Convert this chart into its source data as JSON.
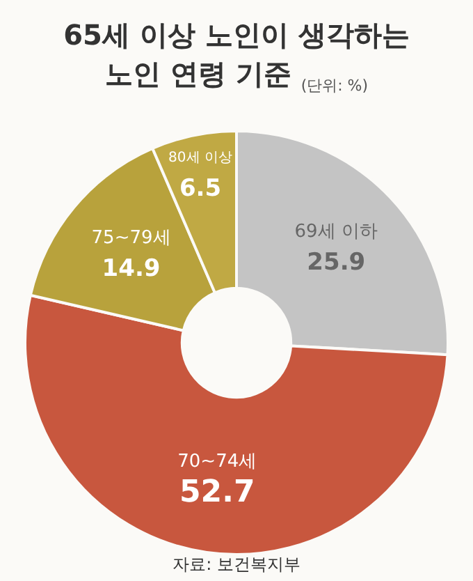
{
  "chart_data": {
    "type": "donut",
    "title": "65세 이상 노인이 생각하는\n노인 연령 기준",
    "subtitle": "(단위: %)",
    "categories": [
      "69세 이하",
      "70~74세",
      "75~79세",
      "80세 이상"
    ],
    "values": [
      25.9,
      52.7,
      14.9,
      6.5
    ],
    "colors": [
      "#c4c4c4",
      "#c8573e",
      "#b8a23c",
      "#c0a944"
    ],
    "data_labels": true,
    "annotations": [
      "자료: 보건복지부"
    ]
  }
}
